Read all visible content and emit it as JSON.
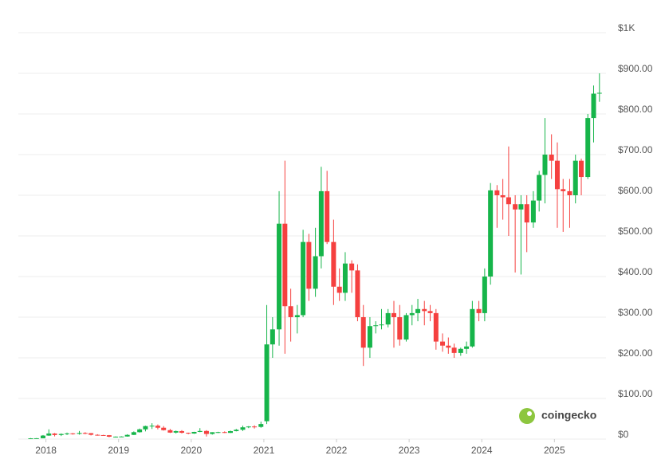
{
  "chart_data": {
    "type": "candlestick",
    "up_color": "#16b54a",
    "down_color": "#f5403f",
    "grid": true,
    "watermark": "coingecko",
    "xlim": [
      2017.62,
      2025.71
    ],
    "xticks": [
      2018,
      2019,
      2020,
      2021,
      2022,
      2023,
      2024,
      2025
    ],
    "ylim": [
      0,
      1000
    ],
    "yticks": [
      {
        "value": 0,
        "label": "$0"
      },
      {
        "value": 100,
        "label": "$100.00"
      },
      {
        "value": 200,
        "label": "$200.00"
      },
      {
        "value": 300,
        "label": "$300.00"
      },
      {
        "value": 400,
        "label": "$400.00"
      },
      {
        "value": 500,
        "label": "$500.00"
      },
      {
        "value": 600,
        "label": "$600.00"
      },
      {
        "value": 700,
        "label": "$700.00"
      },
      {
        "value": 800,
        "label": "$800.00"
      },
      {
        "value": 900,
        "label": "$900.00"
      },
      {
        "value": 1000,
        "label": "$1K"
      }
    ],
    "x": [
      2017.79,
      2017.87,
      2017.96,
      2018.04,
      2018.12,
      2018.21,
      2018.29,
      2018.37,
      2018.46,
      2018.54,
      2018.62,
      2018.71,
      2018.79,
      2018.87,
      2018.96,
      2019.04,
      2019.12,
      2019.21,
      2019.29,
      2019.37,
      2019.46,
      2019.54,
      2019.62,
      2019.71,
      2019.79,
      2019.87,
      2019.96,
      2020.04,
      2020.12,
      2020.21,
      2020.29,
      2020.37,
      2020.46,
      2020.54,
      2020.62,
      2020.71,
      2020.79,
      2020.87,
      2020.96,
      2021.04,
      2021.12,
      2021.21,
      2021.29,
      2021.37,
      2021.46,
      2021.54,
      2021.62,
      2021.71,
      2021.79,
      2021.87,
      2021.96,
      2022.04,
      2022.12,
      2022.21,
      2022.29,
      2022.37,
      2022.46,
      2022.54,
      2022.62,
      2022.71,
      2022.79,
      2022.87,
      2022.96,
      2023.04,
      2023.12,
      2023.21,
      2023.29,
      2023.37,
      2023.46,
      2023.54,
      2023.62,
      2023.71,
      2023.79,
      2023.87,
      2023.96,
      2024.04,
      2024.12,
      2024.21,
      2024.29,
      2024.37,
      2024.46,
      2024.54,
      2024.62,
      2024.71,
      2024.79,
      2024.87,
      2024.96,
      2025.04,
      2025.12,
      2025.21,
      2025.29,
      2025.37,
      2025.46,
      2025.54,
      2025.62
    ],
    "open": [
      1.5,
      1.9,
      2.1,
      8.7,
      13.8,
      10.1,
      12.6,
      14.1,
      12.9,
      15.1,
      14.6,
      10.6,
      9.9,
      9.6,
      5.9,
      6.1,
      6.4,
      10.4,
      17,
      24,
      32,
      33,
      28,
      22,
      16,
      19.7,
      15.6,
      13.7,
      17.7,
      20,
      12.7,
      16.9,
      17.2,
      15.3,
      19.6,
      23,
      29,
      31,
      30,
      44,
      233,
      270,
      530,
      327,
      300,
      305,
      485,
      370,
      450,
      610,
      485,
      375,
      360,
      432,
      415,
      300,
      225,
      278,
      280,
      282,
      310,
      300,
      245,
      305,
      310,
      320,
      315,
      310,
      240,
      230,
      225,
      212,
      222,
      228,
      320,
      310,
      400,
      612,
      600,
      595,
      578,
      565,
      578,
      533,
      587,
      650,
      700,
      685,
      615,
      610,
      600,
      685,
      645,
      790,
      850
    ],
    "high": [
      2.5,
      2.5,
      10,
      24,
      15,
      14,
      16,
      15,
      20,
      17,
      15,
      12,
      10.5,
      10,
      6.5,
      7,
      12,
      19,
      26,
      33,
      39,
      36,
      32,
      25,
      21,
      22,
      16,
      18,
      27,
      22,
      17,
      18,
      19,
      21,
      25,
      33,
      32,
      34,
      43,
      330,
      300,
      610,
      685,
      370,
      330,
      515,
      505,
      520,
      670,
      660,
      540,
      420,
      460,
      440,
      430,
      330,
      300,
      290,
      320,
      320,
      340,
      330,
      310,
      330,
      345,
      340,
      330,
      320,
      260,
      250,
      235,
      225,
      240,
      340,
      340,
      420,
      630,
      625,
      640,
      720,
      600,
      600,
      600,
      610,
      660,
      790,
      750,
      730,
      640,
      640,
      700,
      690,
      800,
      870,
      900
    ],
    "low": [
      1.3,
      1.6,
      2,
      8,
      6.7,
      7.5,
      10,
      11,
      11,
      12,
      9,
      8.5,
      8.7,
      4.5,
      4,
      5,
      6,
      10,
      16,
      19,
      25,
      24,
      21,
      15,
      14,
      14,
      12,
      13,
      17,
      6.4,
      11,
      15,
      15,
      15,
      19,
      20,
      27,
      26,
      28,
      37,
      200,
      230,
      210,
      240,
      260,
      300,
      340,
      350,
      420,
      480,
      330,
      340,
      340,
      360,
      290,
      180,
      200,
      260,
      270,
      275,
      225,
      230,
      240,
      280,
      290,
      280,
      290,
      220,
      215,
      210,
      200,
      205,
      210,
      225,
      290,
      290,
      380,
      520,
      540,
      500,
      410,
      405,
      460,
      520,
      560,
      580,
      640,
      520,
      510,
      520,
      580,
      600,
      640,
      730,
      830
    ],
    "close": [
      1.9,
      2.1,
      8.7,
      13.8,
      10.1,
      12.6,
      14.1,
      12.9,
      15.1,
      14.6,
      10.6,
      9.9,
      9.6,
      5.9,
      6.1,
      6.4,
      10.4,
      17,
      24,
      32,
      33,
      28,
      22,
      16,
      19.7,
      15.6,
      13.7,
      17.7,
      20,
      12.7,
      16.9,
      17.2,
      15.3,
      19.6,
      23,
      29,
      31,
      30,
      37,
      233,
      270,
      530,
      327,
      300,
      305,
      485,
      370,
      450,
      610,
      485,
      375,
      360,
      432,
      415,
      300,
      225,
      278,
      280,
      282,
      310,
      300,
      245,
      305,
      310,
      320,
      315,
      310,
      240,
      230,
      225,
      212,
      222,
      228,
      320,
      310,
      400,
      612,
      600,
      595,
      578,
      565,
      578,
      533,
      587,
      650,
      700,
      685,
      615,
      610,
      600,
      685,
      645,
      790,
      850,
      852
    ]
  }
}
